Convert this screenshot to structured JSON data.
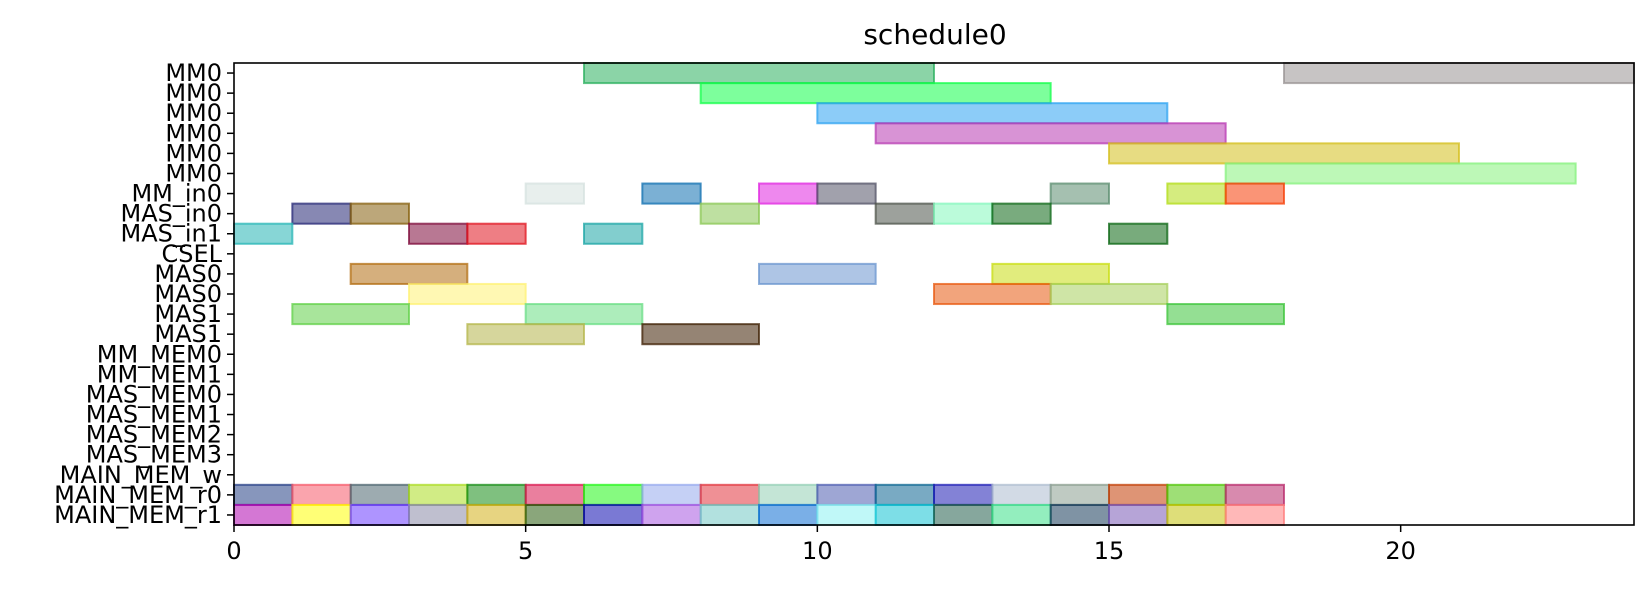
{
  "chart_data": {
    "type": "gantt",
    "title": "schedule0",
    "xlim": [
      0,
      24
    ],
    "x_ticks": [
      0,
      5,
      10,
      15,
      20
    ],
    "rows": [
      "MM0",
      "MM0",
      "MM0",
      "MM0",
      "MM0",
      "MM0",
      "MM_in0",
      "MAS_in0",
      "MAS_in1",
      "CSEL",
      "MAS0",
      "MAS0",
      "MAS1",
      "MAS1",
      "MM_MEM0",
      "MM_MEM1",
      "MAS_MEM0",
      "MAS_MEM1",
      "MAS_MEM2",
      "MAS_MEM3",
      "MAIN_MEM_w",
      "MAIN_MEM_r0",
      "MAIN_MEM_r1"
    ],
    "bars": [
      {
        "row": 0,
        "start": 6,
        "end": 12,
        "color": "#2bb05f"
      },
      {
        "row": 0,
        "start": 18,
        "end": 24,
        "color": "#999494"
      },
      {
        "row": 1,
        "start": 8,
        "end": 14,
        "color": "#12ff4a"
      },
      {
        "row": 2,
        "start": 10,
        "end": 16,
        "color": "#2ea3f2"
      },
      {
        "row": 3,
        "start": 11,
        "end": 17,
        "color": "#b83ab3"
      },
      {
        "row": 4,
        "start": 15,
        "end": 21,
        "color": "#d4bf1c"
      },
      {
        "row": 5,
        "start": 17,
        "end": 23,
        "color": "#86f27c"
      },
      {
        "row": 6,
        "start": 5,
        "end": 6,
        "color": "#d5e2df"
      },
      {
        "row": 6,
        "start": 7,
        "end": 8,
        "color": "#0f6fb0"
      },
      {
        "row": 6,
        "start": 9,
        "end": 10,
        "color": "#e026e0"
      },
      {
        "row": 6,
        "start": 10,
        "end": 11,
        "color": "#535367"
      },
      {
        "row": 6,
        "start": 14,
        "end": 15,
        "color": "#5b8d6f"
      },
      {
        "row": 6,
        "start": 16,
        "end": 17,
        "color": "#b2dc16"
      },
      {
        "row": 6,
        "start": 17,
        "end": 18,
        "color": "#f53d06"
      },
      {
        "row": 7,
        "start": 1,
        "end": 2,
        "color": "#252775"
      },
      {
        "row": 7,
        "start": 2,
        "end": 3,
        "color": "#855f0c"
      },
      {
        "row": 7,
        "start": 8,
        "end": 9,
        "color": "#89c753"
      },
      {
        "row": 7,
        "start": 11,
        "end": 12,
        "color": "#4d534a"
      },
      {
        "row": 7,
        "start": 12,
        "end": 13,
        "color": "#84f7bc"
      },
      {
        "row": 7,
        "start": 13,
        "end": 14,
        "color": "#0b6614"
      },
      {
        "row": 8,
        "start": 0,
        "end": 1,
        "color": "#25b5b5"
      },
      {
        "row": 8,
        "start": 3,
        "end": 4,
        "color": "#7e0a3a"
      },
      {
        "row": 8,
        "start": 4,
        "end": 5,
        "color": "#e0141f"
      },
      {
        "row": 8,
        "start": 6,
        "end": 7,
        "color": "#1ba6a6"
      },
      {
        "row": 8,
        "start": 15,
        "end": 16,
        "color": "#0a6611"
      },
      {
        "row": 10,
        "start": 2,
        "end": 4,
        "color": "#b36d12"
      },
      {
        "row": 10,
        "start": 9,
        "end": 11,
        "color": "#6b96cf"
      },
      {
        "row": 10,
        "start": 13,
        "end": 15,
        "color": "#c8dd12"
      },
      {
        "row": 11,
        "start": 3,
        "end": 5,
        "color": "#fff274"
      },
      {
        "row": 11,
        "start": 12,
        "end": 14,
        "color": "#e85a10"
      },
      {
        "row": 11,
        "start": 14,
        "end": 16,
        "color": "#a7cf5c"
      },
      {
        "row": 12,
        "start": 1,
        "end": 3,
        "color": "#61d048"
      },
      {
        "row": 12,
        "start": 5,
        "end": 7,
        "color": "#6ade84"
      },
      {
        "row": 12,
        "start": 16,
        "end": 18,
        "color": "#3cc43a"
      },
      {
        "row": 13,
        "start": 4,
        "end": 6,
        "color": "#b4b54a"
      },
      {
        "row": 13,
        "start": 7,
        "end": 9,
        "color": "#3e1f02"
      },
      {
        "row": 21,
        "start": 0,
        "end": 1,
        "color": "#253f85"
      },
      {
        "row": 21,
        "start": 1,
        "end": 2,
        "color": "#f55a6a"
      },
      {
        "row": 21,
        "start": 2,
        "end": 3,
        "color": "#4d6670"
      },
      {
        "row": 21,
        "start": 3,
        "end": 4,
        "color": "#abdc21"
      },
      {
        "row": 21,
        "start": 4,
        "end": 5,
        "color": "#168c16"
      },
      {
        "row": 21,
        "start": 5,
        "end": 6,
        "color": "#d9164e"
      },
      {
        "row": 21,
        "start": 6,
        "end": 7,
        "color": "#23f517"
      },
      {
        "row": 21,
        "start": 7,
        "end": 8,
        "color": "#96a9ed"
      },
      {
        "row": 21,
        "start": 8,
        "end": 9,
        "color": "#e2353e"
      },
      {
        "row": 21,
        "start": 9,
        "end": 10,
        "color": "#94cfb5"
      },
      {
        "row": 21,
        "start": 10,
        "end": 11,
        "color": "#4e5db1"
      },
      {
        "row": 21,
        "start": 11,
        "end": 12,
        "color": "#0b6591"
      },
      {
        "row": 21,
        "start": 12,
        "end": 13,
        "color": "#1d1cb5"
      },
      {
        "row": 21,
        "start": 13,
        "end": 14,
        "color": "#adbccf"
      },
      {
        "row": 21,
        "start": 14,
        "end": 15,
        "color": "#8b9e8f"
      },
      {
        "row": 21,
        "start": 15,
        "end": 16,
        "color": "#c23d04"
      },
      {
        "row": 21,
        "start": 16,
        "end": 17,
        "color": "#4fc505"
      },
      {
        "row": 21,
        "start": 17,
        "end": 18,
        "color": "#b82a6b"
      },
      {
        "row": 22,
        "start": 0,
        "end": 1,
        "color": "#b107b1"
      },
      {
        "row": 22,
        "start": 1,
        "end": 2,
        "color": "#ffff06"
      },
      {
        "row": 22,
        "start": 2,
        "end": 3,
        "color": "#6c3cff"
      },
      {
        "row": 22,
        "start": 3,
        "end": 4,
        "color": "#8a8aa8"
      },
      {
        "row": 22,
        "start": 4,
        "end": 5,
        "color": "#d4b11a"
      },
      {
        "row": 22,
        "start": 5,
        "end": 6,
        "color": "#2a5c0e"
      },
      {
        "row": 22,
        "start": 6,
        "end": 7,
        "color": "#0c0bb0"
      },
      {
        "row": 22,
        "start": 7,
        "end": 8,
        "color": "#a858e0"
      },
      {
        "row": 22,
        "start": 8,
        "end": 9,
        "color": "#72c9c4"
      },
      {
        "row": 22,
        "start": 9,
        "end": 10,
        "color": "#0d6ed3"
      },
      {
        "row": 22,
        "start": 10,
        "end": 11,
        "color": "#8cf2f2"
      },
      {
        "row": 22,
        "start": 11,
        "end": 12,
        "color": "#12c3d3"
      },
      {
        "row": 22,
        "start": 12,
        "end": 13,
        "color": "#225e4c"
      },
      {
        "row": 22,
        "start": 13,
        "end": 14,
        "color": "#3ae089"
      },
      {
        "row": 22,
        "start": 14,
        "end": 15,
        "color": "#163a5a"
      },
      {
        "row": 22,
        "start": 15,
        "end": 16,
        "color": "#7a5ab7"
      },
      {
        "row": 22,
        "start": 16,
        "end": 17,
        "color": "#c3c20b"
      },
      {
        "row": 22,
        "start": 17,
        "end": 18,
        "color": "#ff7d7d"
      }
    ]
  }
}
